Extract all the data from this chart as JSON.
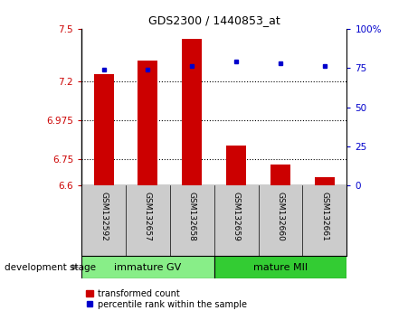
{
  "title": "GDS2300 / 1440853_at",
  "samples": [
    "GSM132592",
    "GSM132657",
    "GSM132658",
    "GSM132659",
    "GSM132660",
    "GSM132661"
  ],
  "bar_values": [
    7.24,
    7.32,
    7.44,
    6.83,
    6.72,
    6.65
  ],
  "percentile_values": [
    74,
    74,
    76,
    79,
    78,
    76
  ],
  "ylim_left": [
    6.6,
    7.5
  ],
  "ylim_right": [
    0,
    100
  ],
  "yticks_left": [
    6.6,
    6.75,
    6.975,
    7.2,
    7.5
  ],
  "ytick_labels_left": [
    "6.6",
    "6.75",
    "6.975",
    "7.2",
    "7.5"
  ],
  "yticks_right": [
    0,
    25,
    50,
    75,
    100
  ],
  "ytick_labels_right": [
    "0",
    "25",
    "50",
    "75",
    "100%"
  ],
  "hlines": [
    7.2,
    6.975,
    6.75
  ],
  "bar_color": "#cc0000",
  "dot_color": "#0000cc",
  "bar_width": 0.45,
  "groups": [
    {
      "label": "immature GV",
      "indices": [
        0,
        1,
        2
      ],
      "color": "#88ee88"
    },
    {
      "label": "mature MII",
      "indices": [
        3,
        4,
        5
      ],
      "color": "#33cc33"
    }
  ],
  "group_label": "development stage",
  "legend_bar_label": "transformed count",
  "legend_dot_label": "percentile rank within the sample",
  "left_axis_color": "#cc0000",
  "right_axis_color": "#0000cc",
  "label_bg_color": "#cccccc",
  "ybase": 6.6,
  "figsize": [
    4.51,
    3.54
  ],
  "dpi": 100
}
